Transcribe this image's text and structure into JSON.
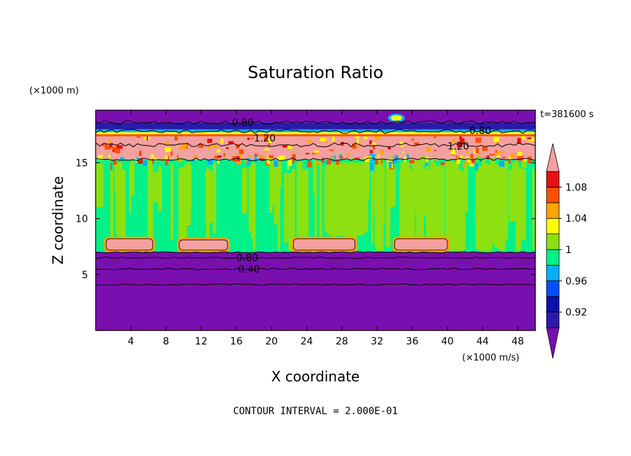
{
  "chart_data": {
    "type": "heatmap",
    "title": "Saturation Ratio",
    "xlabel": "X coordinate",
    "ylabel": "Z coordinate",
    "x_unit": "(×1000 m/s)",
    "y_unit": "(×1000 m)",
    "time_label": "t=381600 s",
    "footer": "CONTOUR INTERVAL = 2.000E-01",
    "xlim": [
      0,
      50
    ],
    "ylim": [
      0,
      19.7
    ],
    "x_ticks": [
      4,
      8,
      12,
      16,
      20,
      24,
      28,
      32,
      36,
      40,
      44,
      48
    ],
    "y_ticks": [
      5,
      10,
      15
    ],
    "grid": false,
    "contour_labels": [
      {
        "text": "0.80",
        "x": 15.5,
        "y": 18.6
      },
      {
        "text": "1.20",
        "x": 18.0,
        "y": 17.2
      },
      {
        "text": "0.80",
        "x": 42.5,
        "y": 17.9
      },
      {
        "text": "1.20",
        "x": 40.0,
        "y": 16.5
      },
      {
        "text": "0.80",
        "x": 16.0,
        "y": 6.5
      },
      {
        "text": "0.40",
        "x": 16.2,
        "y": 5.5
      }
    ],
    "colorbar": {
      "tick_labels": [
        "0.92",
        "0.96",
        "1",
        "1.04",
        "1.08"
      ],
      "tick_values": [
        0.92,
        0.96,
        1.0,
        1.04,
        1.08
      ],
      "levels": [
        0.9,
        0.92,
        0.94,
        0.96,
        0.98,
        1.0,
        1.02,
        1.04,
        1.06,
        1.08,
        1.1
      ],
      "colors": [
        "#7a0fb0",
        "#2b1aa8",
        "#0a10a8",
        "#0050ff",
        "#00b0ff",
        "#00f08a",
        "#8ee010",
        "#ffff00",
        "#ffa500",
        "#ff5000",
        "#e81010",
        "#f4a0a0"
      ]
    },
    "bands": [
      {
        "from": 0,
        "to": 4.1,
        "color": "#7a0fb0"
      },
      {
        "from": 4.1,
        "to": 7.0,
        "color": "#7a0fb0"
      },
      {
        "from": 7.0,
        "to": 15.3,
        "color": "#00f08a"
      },
      {
        "from": 15.3,
        "to": 17.8,
        "color": "#f4a0a0"
      },
      {
        "from": 17.8,
        "to": 18.6,
        "color": "#2b1aa8"
      },
      {
        "from": 18.6,
        "to": 19.7,
        "color": "#7a0fb0"
      }
    ],
    "cloud_patches": [
      {
        "x0": 1.2,
        "x1": 6.5,
        "y0": 7.0,
        "y1": 8.2
      },
      {
        "x0": 9.5,
        "x1": 15.0,
        "y0": 7.0,
        "y1": 8.1
      },
      {
        "x0": 22.5,
        "x1": 29.5,
        "y0": 7.0,
        "y1": 8.2
      },
      {
        "x0": 34.0,
        "x1": 40.0,
        "y0": 7.0,
        "y1": 8.2
      }
    ]
  }
}
